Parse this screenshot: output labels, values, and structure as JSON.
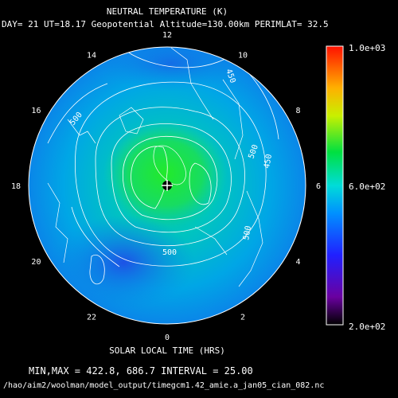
{
  "title": "NEUTRAL TEMPERATURE (K)",
  "subtitle": "DAY= 21 UT=18.17 Geopotential Altitude=130.00km PERIMLAT= 32.5",
  "colorbar": {
    "max_label": "1.0e+03",
    "mid_label": "6.0e+02",
    "min_label": "2.0e+02"
  },
  "hour_labels": [
    "12",
    "14",
    "16",
    "18",
    "20",
    "22",
    "0",
    "2",
    "4",
    "6",
    "8",
    "10"
  ],
  "contour_labels": [
    "450",
    "500",
    "500",
    "450",
    "500",
    "500"
  ],
  "xlabel": "SOLAR LOCAL TIME (HRS)",
  "stats": "MIN,MAX =      422.8,      686.7 INTERVAL =      25.00",
  "file_path": "/hao/aim2/woolman/model_output/timegcm1.42_amie.a_jan05_cian_082.nc"
}
